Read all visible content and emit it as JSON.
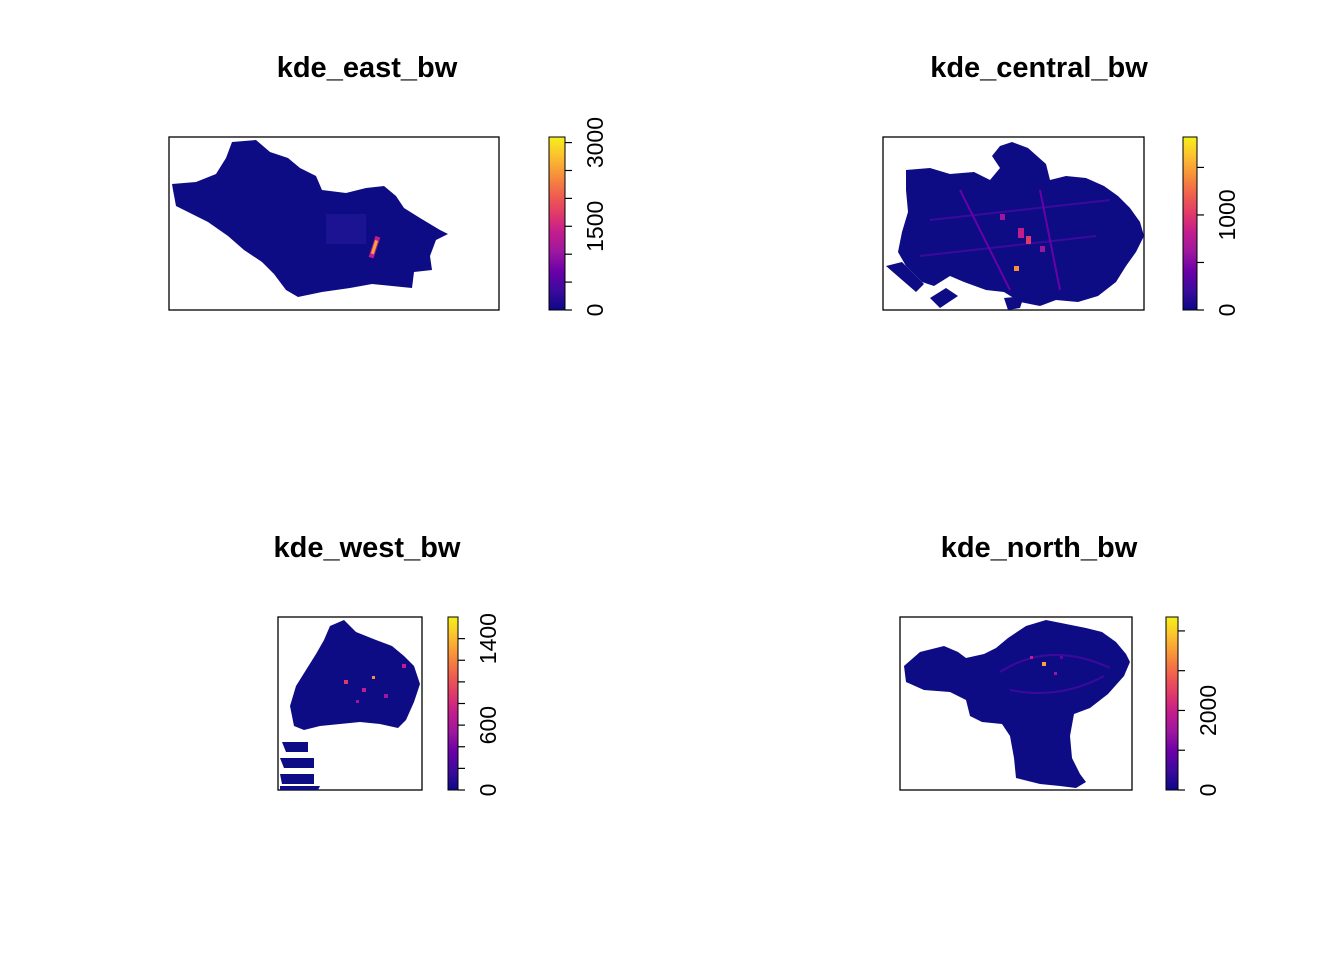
{
  "colors": {
    "background": "#ffffff",
    "region_fill": "#0d0c84",
    "region_texture": "#2a1aa0",
    "hotspot_mid": "#c21c8e",
    "hotspot_high": "#f8a33a",
    "hotspot_peak": "#f7ec30",
    "palette": [
      "#0d0887",
      "#3b0a9d",
      "#6a00a8",
      "#9c179e",
      "#c21c8e",
      "#e1396b",
      "#f0604d",
      "#f7903a",
      "#fbc02f",
      "#f5f018"
    ]
  },
  "chart_data": [
    {
      "type": "heatmap",
      "title": "kde_east_bw",
      "legend_ticks": [
        "0",
        "1500",
        "3000"
      ],
      "legend_range": [
        0,
        3100
      ],
      "legend_tick_values": [
        0,
        500,
        1000,
        1500,
        2000,
        2500,
        3000
      ],
      "legend_labeled_values": [
        0,
        1500,
        3000
      ]
    },
    {
      "type": "heatmap",
      "title": "kde_central_bw",
      "legend_ticks": [
        "0",
        "1000"
      ],
      "legend_range": [
        0,
        1820
      ],
      "legend_tick_values": [
        0,
        500,
        1000,
        1500
      ],
      "legend_labeled_values": [
        0,
        1000
      ]
    },
    {
      "type": "heatmap",
      "title": "kde_west_bw",
      "legend_ticks": [
        "0",
        "600",
        "1400"
      ],
      "legend_range": [
        0,
        1600
      ],
      "legend_tick_values": [
        0,
        200,
        400,
        600,
        800,
        1000,
        1200,
        1400
      ],
      "legend_labeled_values": [
        0,
        600,
        1400
      ]
    },
    {
      "type": "heatmap",
      "title": "kde_north_bw",
      "legend_ticks": [
        "0",
        "2000"
      ],
      "legend_range": [
        0,
        4350
      ],
      "legend_tick_values": [
        0,
        1000,
        2000,
        3000,
        4000
      ],
      "legend_labeled_values": [
        0,
        2000
      ]
    }
  ]
}
